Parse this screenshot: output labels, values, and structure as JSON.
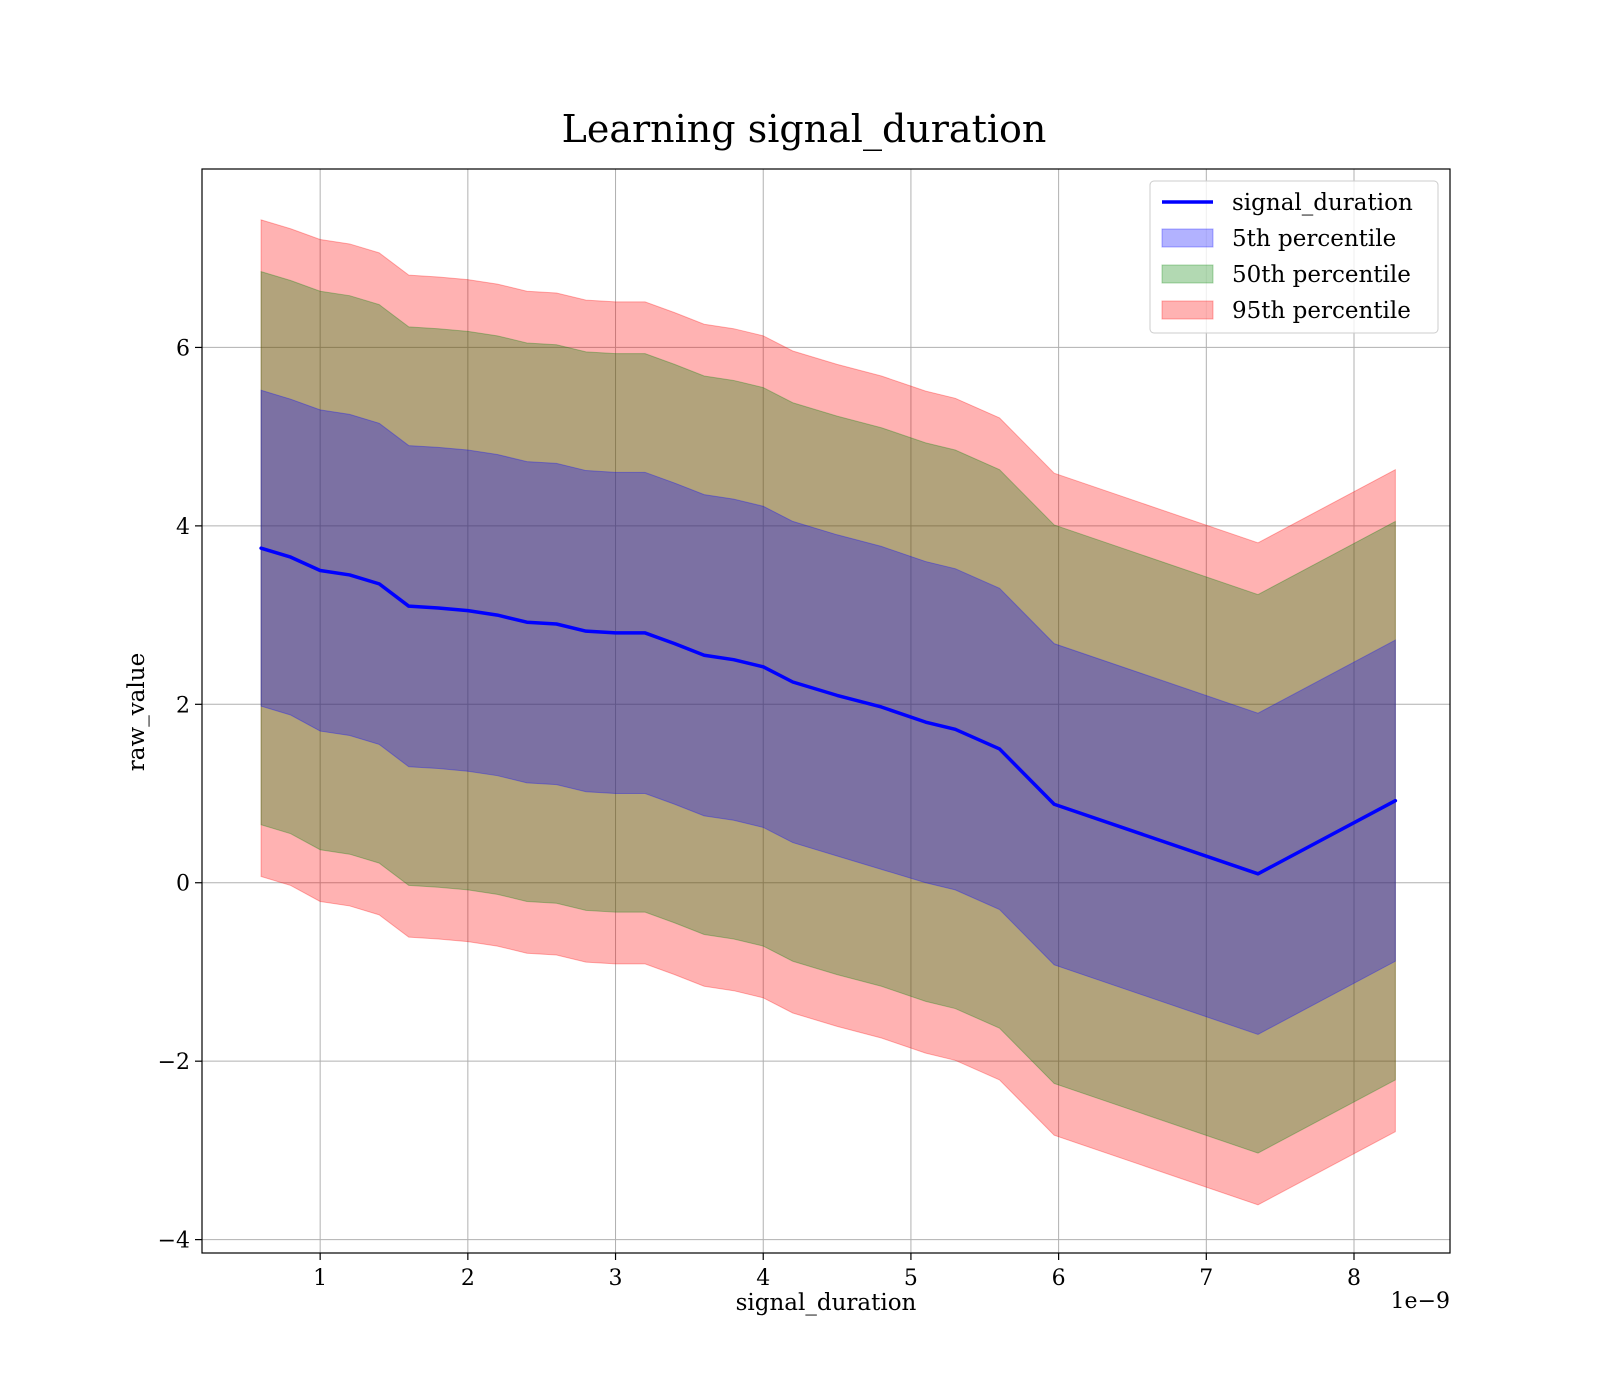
{
  "chart_data": {
    "type": "line",
    "title": "Learning signal_duration",
    "xlabel": "signal_duration",
    "ylabel": "raw_value",
    "x_offset_label": "1e−9",
    "xlim": [
      0.2,
      8.65
    ],
    "ylim": [
      -4.15,
      8.0
    ],
    "x_ticks": [
      1,
      2,
      3,
      4,
      5,
      6,
      7,
      8
    ],
    "x_tick_labels": [
      "1",
      "2",
      "3",
      "4",
      "5",
      "6",
      "7",
      "8"
    ],
    "y_ticks": [
      -4,
      -2,
      0,
      2,
      4,
      6
    ],
    "y_tick_labels": [
      "−4",
      "−2",
      "0",
      "2",
      "4",
      "6"
    ],
    "grid": true,
    "legend_position": "top-right",
    "x": [
      0.6,
      0.8,
      1.0,
      1.2,
      1.4,
      1.6,
      1.8,
      2.0,
      2.2,
      2.4,
      2.6,
      2.8,
      3.0,
      3.2,
      3.4,
      3.6,
      3.8,
      4.0,
      4.2,
      4.5,
      4.8,
      5.1,
      5.3,
      5.6,
      5.97,
      7.35,
      8.28
    ],
    "series": [
      {
        "name": "signal_duration",
        "kind": "line",
        "color": "#0000ff",
        "values": [
          3.75,
          3.65,
          3.5,
          3.45,
          3.35,
          3.1,
          3.08,
          3.05,
          3.0,
          2.92,
          2.9,
          2.82,
          2.8,
          2.8,
          2.68,
          2.55,
          2.5,
          2.42,
          2.25,
          2.1,
          1.97,
          1.8,
          1.72,
          1.5,
          0.88,
          0.1,
          0.92
        ]
      },
      {
        "name": "5th percentile",
        "kind": "band",
        "color": "#0000ff",
        "opacity": 0.3,
        "lower": [
          1.98,
          1.88,
          1.7,
          1.65,
          1.55,
          1.3,
          1.28,
          1.25,
          1.2,
          1.12,
          1.1,
          1.02,
          1.0,
          1.0,
          0.88,
          0.75,
          0.7,
          0.62,
          0.45,
          0.3,
          0.15,
          0.0,
          -0.08,
          -0.3,
          -0.92,
          -1.7,
          -0.88
        ],
        "upper": [
          5.52,
          5.42,
          5.3,
          5.25,
          5.15,
          4.9,
          4.88,
          4.85,
          4.8,
          4.72,
          4.7,
          4.62,
          4.6,
          4.6,
          4.48,
          4.35,
          4.3,
          4.22,
          4.05,
          3.9,
          3.77,
          3.6,
          3.52,
          3.3,
          2.68,
          1.9,
          2.72
        ]
      },
      {
        "name": "50th percentile",
        "kind": "band",
        "color": "#008000",
        "opacity": 0.3,
        "lower": [
          0.65,
          0.55,
          0.37,
          0.32,
          0.22,
          -0.03,
          -0.05,
          -0.08,
          -0.13,
          -0.21,
          -0.23,
          -0.31,
          -0.33,
          -0.33,
          -0.45,
          -0.58,
          -0.63,
          -0.71,
          -0.88,
          -1.03,
          -1.16,
          -1.33,
          -1.41,
          -1.63,
          -2.25,
          -3.03,
          -2.21
        ],
        "upper": [
          6.85,
          6.75,
          6.63,
          6.58,
          6.48,
          6.23,
          6.21,
          6.18,
          6.13,
          6.05,
          6.03,
          5.95,
          5.93,
          5.93,
          5.81,
          5.68,
          5.63,
          5.55,
          5.38,
          5.23,
          5.1,
          4.93,
          4.85,
          4.63,
          4.01,
          3.23,
          4.05
        ]
      },
      {
        "name": "95th percentile",
        "kind": "band",
        "color": "#ff0000",
        "opacity": 0.3,
        "lower": [
          0.07,
          -0.03,
          -0.21,
          -0.26,
          -0.36,
          -0.61,
          -0.63,
          -0.66,
          -0.71,
          -0.79,
          -0.81,
          -0.89,
          -0.91,
          -0.91,
          -1.03,
          -1.16,
          -1.21,
          -1.29,
          -1.46,
          -1.61,
          -1.74,
          -1.91,
          -1.99,
          -2.21,
          -2.83,
          -3.61,
          -2.79
        ],
        "upper": [
          7.43,
          7.33,
          7.21,
          7.16,
          7.06,
          6.81,
          6.79,
          6.76,
          6.71,
          6.63,
          6.61,
          6.53,
          6.51,
          6.51,
          6.39,
          6.26,
          6.21,
          6.13,
          5.96,
          5.81,
          5.68,
          5.51,
          5.43,
          5.21,
          4.59,
          3.81,
          4.63
        ]
      }
    ]
  }
}
